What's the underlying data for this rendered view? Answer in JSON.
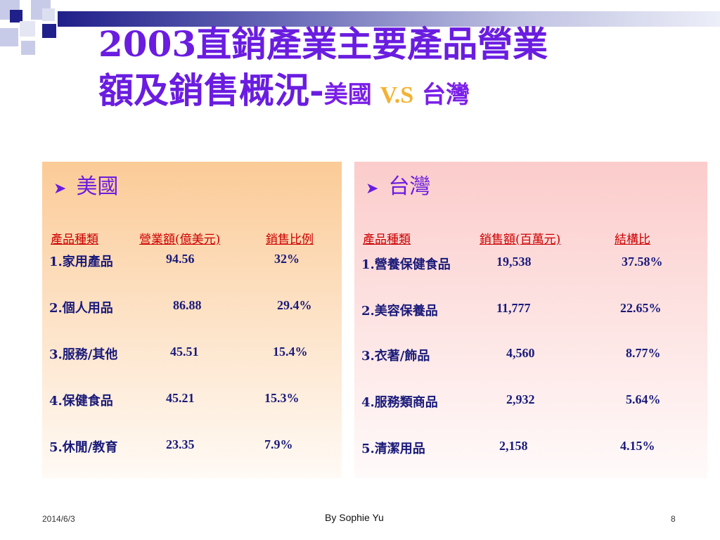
{
  "slide": {
    "title_line1": "2003直銷產業主要產品營業",
    "title_line2_main": "額及銷售概況-",
    "title_line2_us": "美國 ",
    "title_line2_vs": "V.S",
    "title_line2_tw": " 台灣"
  },
  "us": {
    "heading": "美國",
    "col1": "產品種類",
    "col2": "營業額(億美元)",
    "col3": "銷售比例",
    "rows": [
      {
        "name": "1.家用產品",
        "value": "94.56",
        "pct": "32%"
      },
      {
        "name": "2.個人用品",
        "value": "86.88",
        "pct": "29.4%"
      },
      {
        "name": "3.服務/其他",
        "value": "45.51",
        "pct": "15.4%"
      },
      {
        "name": "4.保健食品",
        "value": "45.21",
        "pct": "15.3%"
      },
      {
        "name": "5.休閒/教育",
        "value": "23.35",
        "pct": "7.9%"
      }
    ]
  },
  "tw": {
    "heading": "台灣",
    "col1": "產品種類",
    "col2": "銷售額(百萬元)",
    "col3": "結構比",
    "rows": [
      {
        "name": "1.營養保健食品",
        "value": "19,538",
        "pct": "37.58%"
      },
      {
        "name": "2.美容保養品",
        "value": "11,777",
        "pct": "22.65%"
      },
      {
        "name": "3.衣著/飾品",
        "value": "4,560",
        "pct": "8.77%"
      },
      {
        "name": "4.服務類商品",
        "value": "2,932",
        "pct": "5.64%"
      },
      {
        "name": "5.清潔用品",
        "value": "2,158",
        "pct": "4.15%"
      }
    ]
  },
  "footer": {
    "date": "2014/6/3",
    "author": "By Sophie Yu",
    "page": "8"
  }
}
